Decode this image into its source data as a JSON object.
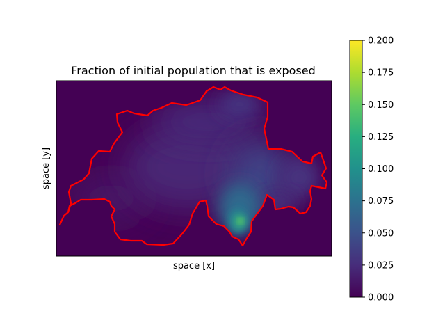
{
  "chart_data": {
    "type": "heatmap",
    "title": "Fraction of initial population that is exposed",
    "xlabel": "space [x]",
    "ylabel": "space [y]",
    "x_ticks": "none",
    "y_ticks": "none",
    "colormap": "viridis",
    "colorbar": {
      "ticks": [
        "0.000",
        "0.025",
        "0.050",
        "0.075",
        "0.100",
        "0.125",
        "0.150",
        "0.175",
        "0.200"
      ],
      "range": [
        0,
        0.2
      ]
    },
    "background_value": 0.0,
    "overlay": {
      "name": "Switzerland border",
      "color": "#ff0000"
    },
    "field_peaks": [
      {
        "region": "south-east (Ticino)",
        "value": 0.13
      },
      {
        "region": "east-central",
        "value": 0.05
      },
      {
        "region": "central",
        "value": 0.025
      },
      {
        "region": "north-east",
        "value": 0.02
      },
      {
        "region": "west",
        "value": 0.01
      }
    ]
  },
  "colors": {
    "viridis_low": "#440154",
    "viridis_mid": "#21918c",
    "viridis_high": "#fde725",
    "border": "#ff0000"
  }
}
